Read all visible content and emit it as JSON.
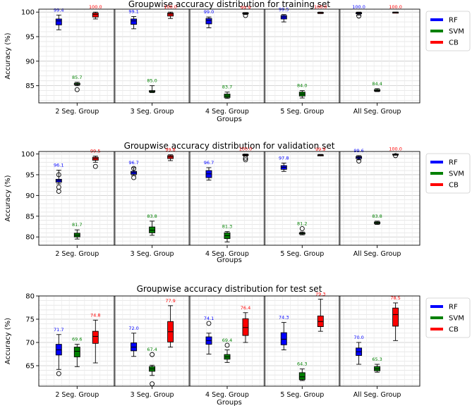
{
  "colors": {
    "RF": "#0000ff",
    "SVM": "#008000",
    "CB": "#ff0000"
  },
  "chart_data": [
    {
      "type": "box",
      "title": "Groupwise accuracy distribution for training set",
      "xlabel": "Groups",
      "ylabel": "Accuracy (%)",
      "ylim": [
        81.5,
        100.6
      ],
      "yticks": [
        85,
        90,
        95,
        100
      ],
      "grid": true,
      "legend_position": "right-top",
      "categories": [
        "2 Seg. Group",
        "3 Seg. Group",
        "4 Seg. Group",
        "5 Seg. Group",
        "All Seg. Group"
      ],
      "series": [
        {
          "name": "RF",
          "color": "#0000ff",
          "boxes": [
            {
              "whislo": 96.4,
              "q1": 97.4,
              "med": 98.2,
              "q3": 98.6,
              "whishi": 99.4,
              "label": "99.4",
              "fliers": []
            },
            {
              "whislo": 96.6,
              "q1": 97.5,
              "med": 98.2,
              "q3": 98.6,
              "whishi": 99.1,
              "label": "99.1",
              "fliers": []
            },
            {
              "whislo": 96.8,
              "q1": 97.6,
              "med": 98.3,
              "q3": 98.7,
              "whishi": 99.0,
              "label": "99.0",
              "fliers": []
            },
            {
              "whislo": 98.0,
              "q1": 98.6,
              "med": 99.0,
              "q3": 99.3,
              "whishi": 99.5,
              "label": "99.5",
              "fliers": []
            },
            {
              "whislo": 99.4,
              "q1": 99.65,
              "med": 99.8,
              "q3": 99.9,
              "whishi": 100.0,
              "label": "100.0",
              "fliers": [
                99.2
              ]
            }
          ]
        },
        {
          "name": "SVM",
          "color": "#008000",
          "boxes": [
            {
              "whislo": 85.0,
              "q1": 85.2,
              "med": 85.3,
              "q3": 85.5,
              "whishi": 85.7,
              "label": "85.7",
              "fliers": [
                84.2
              ]
            },
            {
              "whislo": 83.6,
              "q1": 83.7,
              "med": 83.9,
              "q3": 84.0,
              "whishi": 85.0,
              "label": "85.0",
              "fliers": []
            },
            {
              "whislo": 82.4,
              "q1": 82.6,
              "med": 82.9,
              "q3": 83.3,
              "whishi": 83.7,
              "label": "83.7",
              "fliers": []
            },
            {
              "whislo": 82.5,
              "q1": 82.9,
              "med": 83.3,
              "q3": 83.7,
              "whishi": 84.0,
              "label": "84.0",
              "fliers": []
            },
            {
              "whislo": 83.8,
              "q1": 83.9,
              "med": 84.0,
              "q3": 84.2,
              "whishi": 84.4,
              "label": "84.4",
              "fliers": []
            }
          ]
        },
        {
          "name": "CB",
          "color": "#ff0000",
          "boxes": [
            {
              "whislo": 98.6,
              "q1": 99.0,
              "med": 99.5,
              "q3": 99.8,
              "whishi": 100.0,
              "label": "100.0",
              "fliers": []
            },
            {
              "whislo": 98.7,
              "q1": 99.2,
              "med": 99.6,
              "q3": 99.8,
              "whishi": 100.0,
              "label": "100.0",
              "fliers": []
            },
            {
              "whislo": 99.5,
              "q1": 99.65,
              "med": 99.75,
              "q3": 99.85,
              "whishi": 99.9,
              "label": "99.9",
              "fliers": [
                99.3
              ]
            },
            {
              "whislo": 99.7,
              "q1": 99.8,
              "med": 99.9,
              "q3": 99.95,
              "whishi": 100.0,
              "label": "100.0",
              "fliers": []
            },
            {
              "whislo": 99.8,
              "q1": 99.9,
              "med": 99.95,
              "q3": 100.0,
              "whishi": 100.0,
              "label": "100.0",
              "fliers": []
            }
          ]
        }
      ]
    },
    {
      "type": "box",
      "title": "Groupwise accuracy distribution for validation set",
      "xlabel": "Groups",
      "ylabel": "Accuracy (%)",
      "ylim": [
        78.0,
        100.6
      ],
      "yticks": [
        80,
        85,
        90,
        95,
        100
      ],
      "grid": true,
      "legend_position": "right-top",
      "categories": [
        "2 Seg. Group",
        "3 Seg. Group",
        "4 Seg. Group",
        "5 Seg. Group",
        "All Seg. Group"
      ],
      "series": [
        {
          "name": "RF",
          "color": "#0000ff",
          "boxes": [
            {
              "whislo": 92.8,
              "q1": 93.2,
              "med": 93.6,
              "q3": 93.9,
              "whishi": 96.1,
              "label": "96.1",
              "fliers": [
                92.0,
                91.0,
                95.0
              ]
            },
            {
              "whislo": 94.8,
              "q1": 95.1,
              "med": 95.5,
              "q3": 95.8,
              "whishi": 96.7,
              "label": "96.7",
              "fliers": [
                94.3,
                96.5
              ]
            },
            {
              "whislo": 93.7,
              "q1": 94.3,
              "med": 95.2,
              "q3": 96.0,
              "whishi": 96.7,
              "label": "96.7",
              "fliers": []
            },
            {
              "whislo": 95.8,
              "q1": 96.3,
              "med": 96.8,
              "q3": 97.2,
              "whishi": 97.8,
              "label": "97.8",
              "fliers": []
            },
            {
              "whislo": 98.6,
              "q1": 98.9,
              "med": 99.2,
              "q3": 99.4,
              "whishi": 99.6,
              "label": "99.6",
              "fliers": [
                98.3
              ]
            }
          ]
        },
        {
          "name": "SVM",
          "color": "#008000",
          "boxes": [
            {
              "whislo": 79.5,
              "q1": 80.0,
              "med": 80.4,
              "q3": 80.9,
              "whishi": 81.7,
              "label": "81.7",
              "fliers": []
            },
            {
              "whislo": 80.4,
              "q1": 81.0,
              "med": 81.6,
              "q3": 82.4,
              "whishi": 83.8,
              "label": "83.8",
              "fliers": []
            },
            {
              "whislo": 78.8,
              "q1": 79.6,
              "med": 80.3,
              "q3": 81.0,
              "whishi": 81.3,
              "label": "81.3",
              "fliers": []
            },
            {
              "whislo": 80.5,
              "q1": 80.7,
              "med": 80.9,
              "q3": 81.0,
              "whishi": 81.2,
              "label": "81.2",
              "fliers": [
                82.0
              ]
            },
            {
              "whislo": 83.0,
              "q1": 83.2,
              "med": 83.4,
              "q3": 83.6,
              "whishi": 83.8,
              "label": "83.8",
              "fliers": []
            }
          ]
        },
        {
          "name": "CB",
          "color": "#ff0000",
          "boxes": [
            {
              "whislo": 98.0,
              "q1": 98.5,
              "med": 98.9,
              "q3": 99.2,
              "whishi": 99.5,
              "label": "99.5",
              "fliers": [
                97.0
              ]
            },
            {
              "whislo": 98.4,
              "q1": 98.9,
              "med": 99.3,
              "q3": 99.6,
              "whishi": 99.8,
              "label": "99.8",
              "fliers": []
            },
            {
              "whislo": 99.5,
              "q1": 99.65,
              "med": 99.8,
              "q3": 99.9,
              "whishi": 100.0,
              "label": "100.0",
              "fliers": [
                99.0,
                98.6
              ]
            },
            {
              "whislo": 99.6,
              "q1": 99.65,
              "med": 99.7,
              "q3": 99.8,
              "whishi": 99.9,
              "label": "99.9",
              "fliers": []
            },
            {
              "whislo": 99.7,
              "q1": 99.8,
              "med": 99.9,
              "q3": 100.0,
              "whishi": 100.0,
              "label": "100.0",
              "fliers": [
                99.6
              ]
            }
          ]
        }
      ]
    },
    {
      "type": "box",
      "title": "Groupwise accuracy distribution for test set",
      "xlabel": "Groups",
      "ylabel": "Accuracy (%)",
      "ylim": [
        60.6,
        80.0
      ],
      "yticks": [
        65,
        70,
        75,
        80
      ],
      "grid": true,
      "legend_position": "right-top",
      "categories": [
        "2 Seg. Group",
        "3 Seg. Group",
        "4 Seg. Group",
        "5 Seg. Group",
        "All Seg. Group"
      ],
      "series": [
        {
          "name": "RF",
          "color": "#0000ff",
          "boxes": [
            {
              "whislo": 64.2,
              "q1": 67.3,
              "med": 68.4,
              "q3": 69.6,
              "whishi": 71.7,
              "label": "71.7",
              "fliers": [
                63.3
              ]
            },
            {
              "whislo": 67.0,
              "q1": 68.2,
              "med": 69.0,
              "q3": 69.9,
              "whishi": 72.0,
              "label": "72.0",
              "fliers": []
            },
            {
              "whislo": 67.5,
              "q1": 69.6,
              "med": 70.4,
              "q3": 71.2,
              "whishi": 72.0,
              "label": "74.1",
              "fliers": [
                74.1
              ]
            },
            {
              "whislo": 68.4,
              "q1": 69.5,
              "med": 70.7,
              "q3": 72.1,
              "whishi": 74.3,
              "label": "74.3",
              "fliers": []
            },
            {
              "whislo": 65.3,
              "q1": 67.2,
              "med": 68.0,
              "q3": 68.8,
              "whishi": 70.0,
              "label": "70.0",
              "fliers": []
            }
          ]
        },
        {
          "name": "SVM",
          "color": "#008000",
          "boxes": [
            {
              "whislo": 64.8,
              "q1": 66.9,
              "med": 68.1,
              "q3": 69.0,
              "whishi": 69.6,
              "label": "69.6",
              "fliers": []
            },
            {
              "whislo": 62.9,
              "q1": 63.8,
              "med": 64.3,
              "q3": 64.8,
              "whishi": 65.1,
              "label": "67.4",
              "fliers": [
                67.4,
                61.1
              ]
            },
            {
              "whislo": 65.7,
              "q1": 66.4,
              "med": 66.9,
              "q3": 67.4,
              "whishi": 68.4,
              "label": "69.4",
              "fliers": [
                69.4
              ]
            },
            {
              "whislo": 61.8,
              "q1": 62.0,
              "med": 62.6,
              "q3": 63.5,
              "whishi": 64.3,
              "label": "64.3",
              "fliers": []
            },
            {
              "whislo": 63.6,
              "q1": 63.9,
              "med": 64.3,
              "q3": 64.8,
              "whishi": 65.3,
              "label": "65.3",
              "fliers": []
            }
          ]
        },
        {
          "name": "CB",
          "color": "#ff0000",
          "boxes": [
            {
              "whislo": 65.6,
              "q1": 69.8,
              "med": 71.3,
              "q3": 72.4,
              "whishi": 74.8,
              "label": "74.8",
              "fliers": []
            },
            {
              "whislo": 69.0,
              "q1": 70.1,
              "med": 72.3,
              "q3": 74.5,
              "whishi": 77.9,
              "label": "77.9",
              "fliers": []
            },
            {
              "whislo": 70.0,
              "q1": 71.5,
              "med": 73.2,
              "q3": 75.1,
              "whishi": 76.4,
              "label": "76.4",
              "fliers": []
            },
            {
              "whislo": 72.4,
              "q1": 73.4,
              "med": 74.5,
              "q3": 75.7,
              "whishi": 79.3,
              "label": "79.3",
              "fliers": []
            },
            {
              "whislo": 70.4,
              "q1": 73.5,
              "med": 76.0,
              "q3": 77.4,
              "whishi": 78.5,
              "label": "78.5",
              "fliers": []
            }
          ]
        }
      ]
    }
  ]
}
